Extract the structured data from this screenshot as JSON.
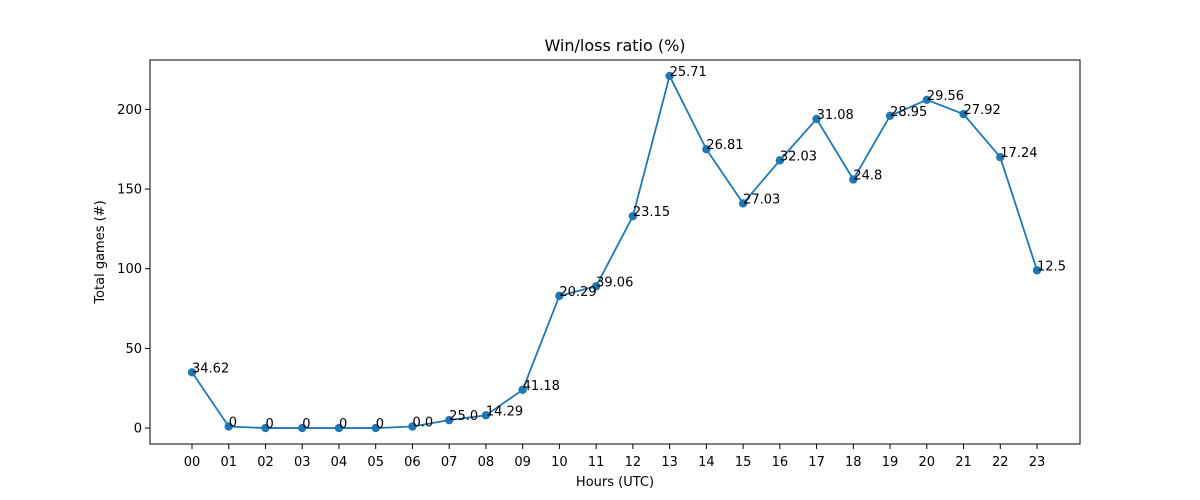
{
  "chart_data": {
    "type": "line",
    "title": "Win/loss ratio (%)",
    "xlabel": "Hours (UTC)",
    "ylabel": "Total games (#)",
    "categories": [
      "00",
      "01",
      "02",
      "03",
      "04",
      "05",
      "06",
      "07",
      "08",
      "09",
      "10",
      "11",
      "12",
      "13",
      "14",
      "15",
      "16",
      "17",
      "18",
      "19",
      "20",
      "21",
      "22",
      "23"
    ],
    "values": [
      35,
      1,
      0,
      0,
      0,
      0,
      1,
      5,
      8,
      24,
      83,
      89,
      133,
      221,
      175,
      141,
      168,
      194,
      156,
      196,
      206,
      197,
      170,
      99
    ],
    "annotations": [
      "34.62",
      "0",
      "0",
      "0",
      "0",
      "0",
      "0.0",
      "25.0",
      "14.29",
      "41.18",
      "20.29",
      "39.06",
      "23.15",
      "25.71",
      "26.81",
      "27.03",
      "32.03",
      "31.08",
      "24.8",
      "28.95",
      "29.56",
      "27.92",
      "17.24",
      "12.5"
    ],
    "yticks": [
      0,
      50,
      100,
      150,
      200
    ],
    "ylim": [
      -10,
      231
    ],
    "grid": false,
    "color": "#1f77b4"
  }
}
